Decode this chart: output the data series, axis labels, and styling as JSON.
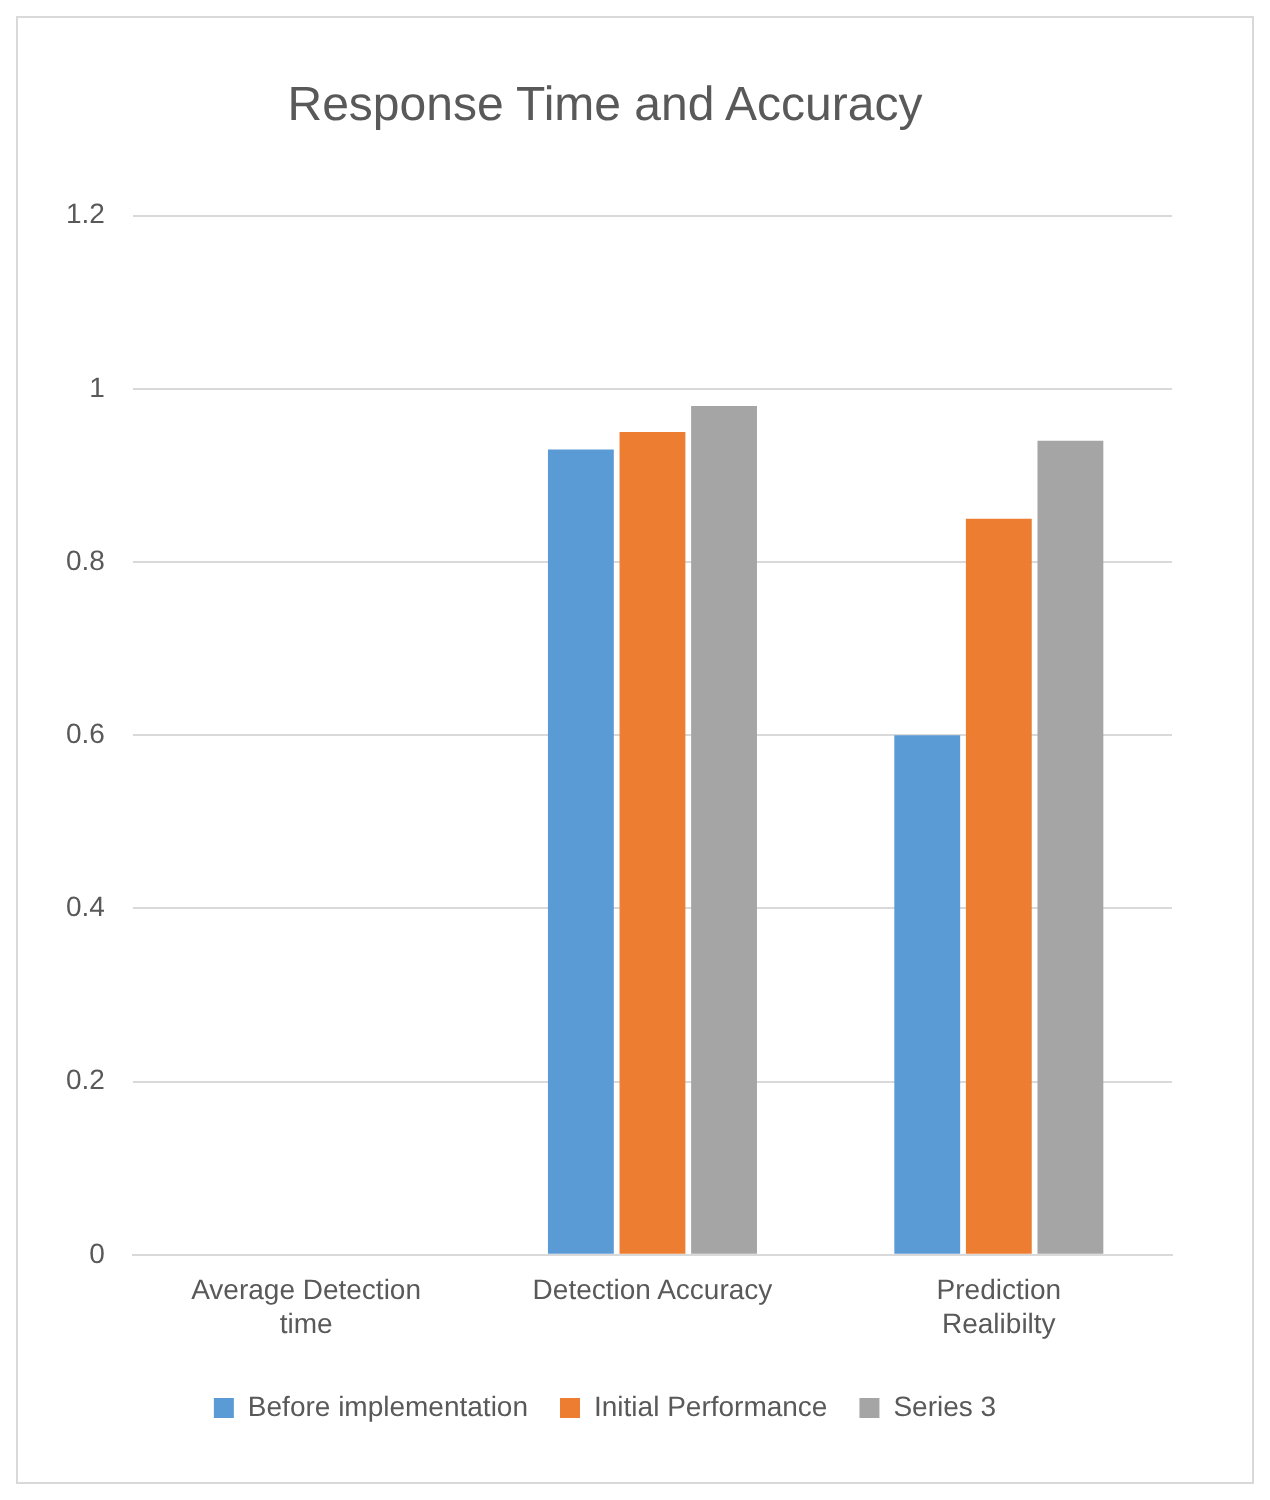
{
  "chart_data": {
    "type": "bar",
    "title": "Response Time and Accuracy",
    "categories": [
      "Average Detection time",
      "Detection Accuracy",
      "Prediction Realibilty"
    ],
    "series": [
      {
        "name": "Before implementation",
        "color": "#5b9bd5",
        "values": [
          null,
          0.93,
          0.6
        ]
      },
      {
        "name": "Initial Performance",
        "color": "#ed7d31",
        "values": [
          null,
          0.95,
          0.85
        ]
      },
      {
        "name": "Series 3",
        "color": "#a5a5a5",
        "values": [
          null,
          0.98,
          0.94
        ]
      }
    ],
    "ylim": [
      0,
      1.2
    ],
    "yticks": [
      0,
      0.2,
      0.4,
      0.6,
      0.8,
      1,
      1.2
    ],
    "grid": "y",
    "legend": "bottom"
  }
}
